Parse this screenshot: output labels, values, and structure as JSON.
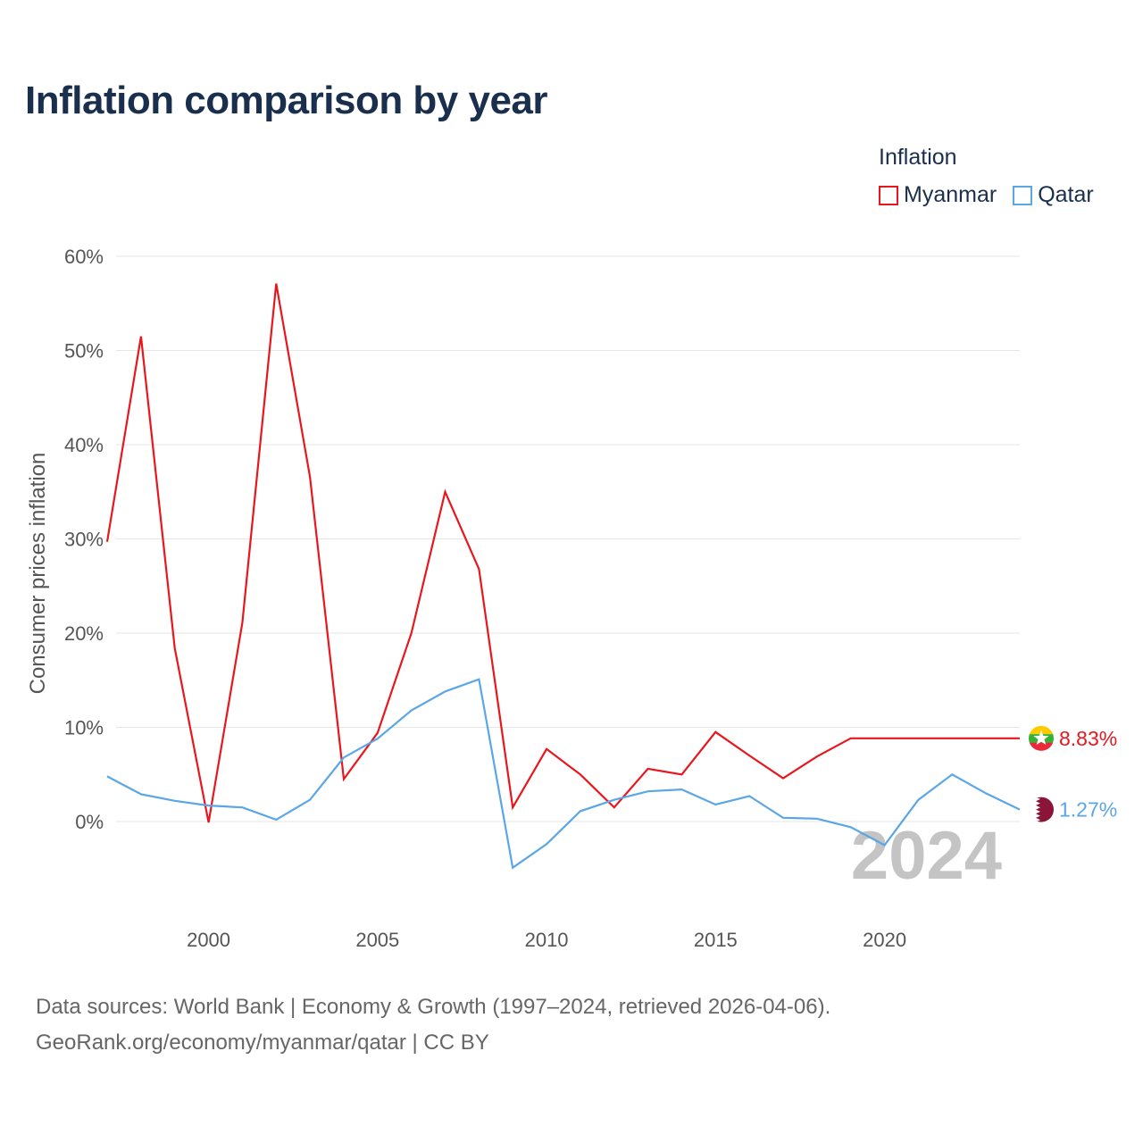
{
  "title": "Inflation comparison by year",
  "legend": {
    "title": "Inflation",
    "items": [
      {
        "label": "Myanmar",
        "color": "#e8171d"
      },
      {
        "label": "Qatar",
        "color": "#5ba6e6"
      }
    ]
  },
  "source": {
    "line1": "Data sources: World Bank | Economy & Growth (1997–2024, retrieved 2026-04-06).",
    "line2": "GeoRank.org/economy/myanmar/qatar | CC BY"
  },
  "chart_data": {
    "type": "line",
    "title": "Inflation comparison by year",
    "xlabel": "",
    "ylabel": "Consumer prices inflation",
    "xlim": [
      1997,
      2024
    ],
    "ylim": [
      -10,
      60
    ],
    "x_ticks": [
      2000,
      2005,
      2010,
      2015,
      2020
    ],
    "y_ticks": [
      0,
      10,
      20,
      30,
      40,
      50,
      60
    ],
    "y_tick_labels": [
      "0%",
      "10%",
      "20%",
      "30%",
      "40%",
      "50%",
      "60%"
    ],
    "grid": true,
    "watermark_year": "2024",
    "x": [
      1997,
      1998,
      1999,
      2000,
      2001,
      2002,
      2003,
      2004,
      2005,
      2006,
      2007,
      2008,
      2009,
      2010,
      2011,
      2012,
      2013,
      2014,
      2015,
      2016,
      2017,
      2018,
      2019,
      2020,
      2021,
      2022,
      2023,
      2024
    ],
    "series": [
      {
        "name": "Myanmar",
        "color": "#e8171d",
        "end_label": "8.83%",
        "flag": "myanmar-flag-icon",
        "values": [
          29.7,
          51.5,
          18.4,
          -0.1,
          21.1,
          57.1,
          36.6,
          4.5,
          9.4,
          20.0,
          35.0,
          26.8,
          1.5,
          7.7,
          5.0,
          1.5,
          5.6,
          5.0,
          9.5,
          7.0,
          4.6,
          6.9,
          8.83,
          8.83,
          8.83,
          8.83,
          8.83,
          8.83
        ]
      },
      {
        "name": "Qatar",
        "color": "#5ba6e6",
        "end_label": "1.27%",
        "flag": "qatar-flag-icon",
        "values": [
          4.8,
          2.9,
          2.2,
          1.7,
          1.5,
          0.2,
          2.3,
          6.8,
          8.8,
          11.8,
          13.8,
          15.1,
          -4.9,
          -2.4,
          1.1,
          2.3,
          3.2,
          3.4,
          1.8,
          2.7,
          0.4,
          0.3,
          -0.6,
          -2.5,
          2.3,
          5.0,
          3.0,
          1.27
        ]
      }
    ]
  }
}
